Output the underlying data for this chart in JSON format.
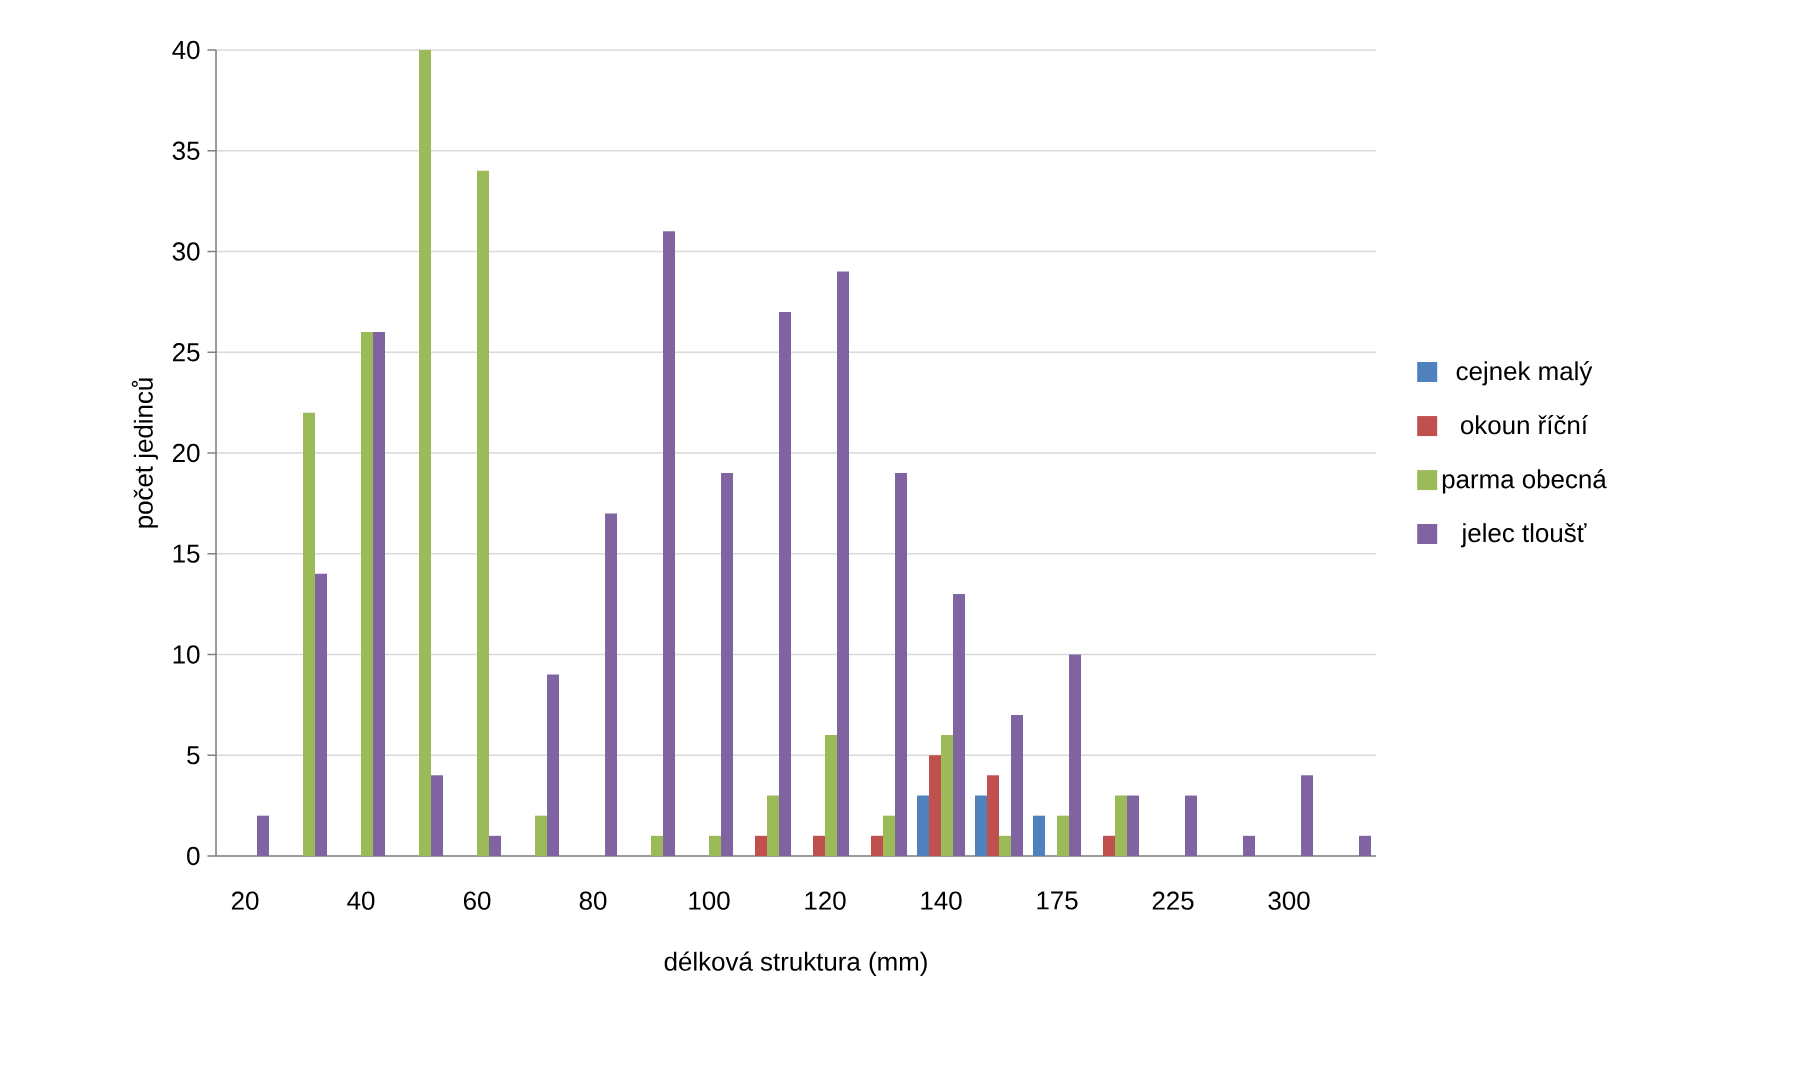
{
  "chart_data": {
    "type": "bar",
    "xlabel": "délková struktura (mm)",
    "ylabel": "počet jedinců",
    "categories": [
      "20",
      null,
      "40",
      null,
      "60",
      null,
      "80",
      null,
      "100",
      null,
      "120",
      null,
      "140",
      null,
      "175",
      null,
      "225",
      null,
      "300",
      null
    ],
    "series": [
      {
        "name": "cejnek malý",
        "color": "#4f81bd",
        "values": [
          null,
          null,
          null,
          null,
          null,
          null,
          null,
          null,
          null,
          null,
          null,
          null,
          3,
          3,
          2,
          null,
          null,
          null,
          null,
          null
        ]
      },
      {
        "name": "okoun říční",
        "color": "#c0504d",
        "values": [
          null,
          null,
          null,
          null,
          null,
          null,
          null,
          null,
          null,
          1,
          1,
          1,
          5,
          4,
          null,
          1,
          null,
          null,
          null,
          null
        ]
      },
      {
        "name": "parma obecná",
        "color": "#9bbb59",
        "values": [
          null,
          22,
          26,
          40,
          34,
          2,
          null,
          1,
          1,
          3,
          6,
          2,
          6,
          1,
          2,
          3,
          null,
          null,
          null,
          null
        ]
      },
      {
        "name": "jelec tloušť",
        "color": "#8064a2",
        "values": [
          2,
          14,
          26,
          4,
          1,
          9,
          17,
          31,
          19,
          27,
          29,
          19,
          13,
          7,
          10,
          3,
          3,
          1,
          4,
          1
        ]
      }
    ],
    "ylim": [
      0,
      40
    ],
    "yticks": [
      0,
      5,
      10,
      15,
      20,
      25,
      30,
      35,
      40
    ],
    "grid": "y",
    "legend": "right"
  }
}
